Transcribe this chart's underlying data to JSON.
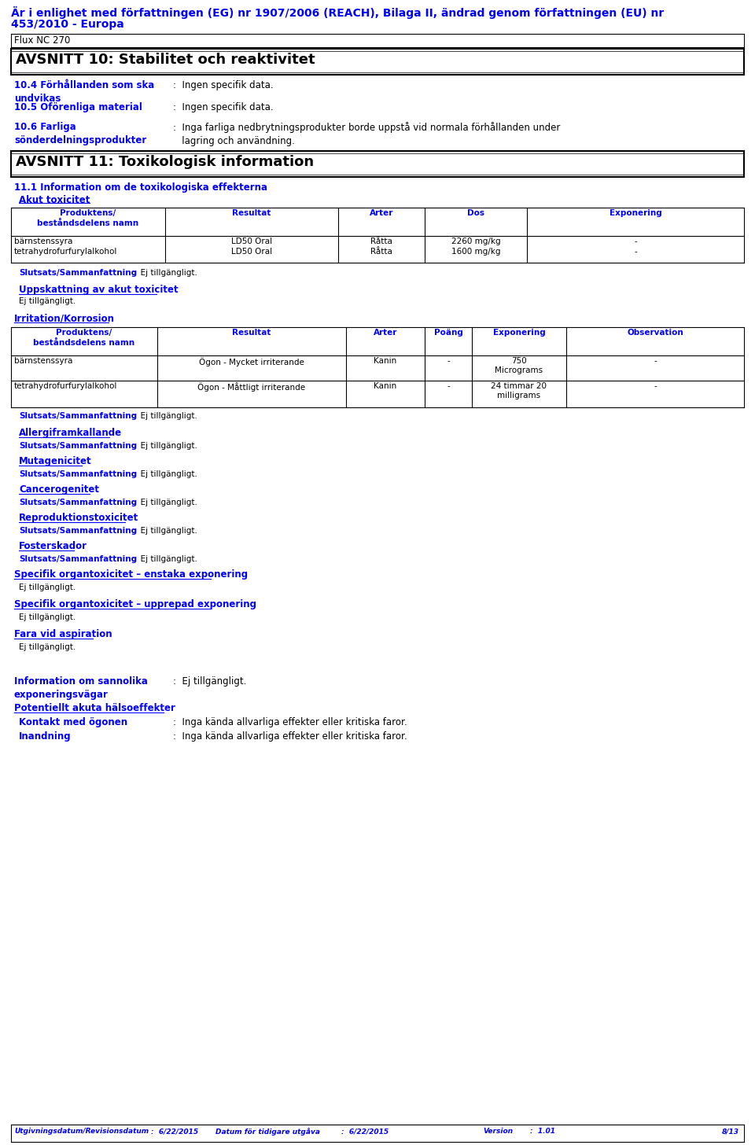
{
  "page_width": 9.6,
  "page_height": 14.56,
  "bg_color": "#ffffff",
  "blue": "#0000ff",
  "black": "#000000",
  "header_line1": "Är i enlighet med författningen (EG) nr 1907/2006 (REACH), Bilaga II, ändrad genom författningen (EU) nr",
  "header_line2": "453/2010 - Europa",
  "product_name": "Flux NC 270",
  "section10_title": "AVSNITT 10: Stabilitet och reaktivitet",
  "section11_title": "AVSNITT 11: Toxikologisk information",
  "s11_1_label": "11.1 Information om de toxikologiska effekterna",
  "akut_label": "Akut toxicitet",
  "table1_headers": [
    "Produktens/\nbeståndsdelens namn",
    "Resultat",
    "Arter",
    "Dos",
    "Exponering"
  ],
  "uppskattning_label": "Uppskattning av akut toxicitet",
  "uppskattning_value": "Ej tillgängligt.",
  "irritation_label": "Irritation/Korrosion",
  "table2_headers": [
    "Produktens/\nbeståndsdelens namn",
    "Resultat",
    "Arter",
    "Poäng",
    "Exponering",
    "Observation"
  ],
  "allergi_label": "Allergiframkallande",
  "mutageni_label": "Mutagenicitet",
  "cancer_label": "Cancerogenitet",
  "repro_label": "Reproduktionstoxicitet",
  "foster_label": "Fosterskador",
  "specifik1_label": "Specifik organtoxicitet – enstaka exponering",
  "specifik1_value": "Ej tillgängligt.",
  "specifik2_label": "Specifik organtoxicitet – upprepad exponering",
  "specifik2_value": "Ej tillgängligt.",
  "fara_label": "Fara vid aspiration",
  "fara_value": "Ej tillgängligt.",
  "info_value": ":  Ej tillgängligt.",
  "potentiell_label": "Potentiellt akuta hälsoeffekter",
  "kontakt_value": ":  Inga kända allvarliga effekter eller kritiska faror.",
  "inandning_value": ":  Inga kända allvarliga effekter eller kritiska faror.",
  "footer_left": "Utgivningsdatum/Revisionsdatum",
  "footer_date1": "6/22/2015",
  "footer_mid_label": "Datum för tidigare utgåva",
  "footer_date2": "6/22/2015",
  "footer_version_label": "Version",
  "footer_version": ":  1.01",
  "footer_page": "8/13"
}
